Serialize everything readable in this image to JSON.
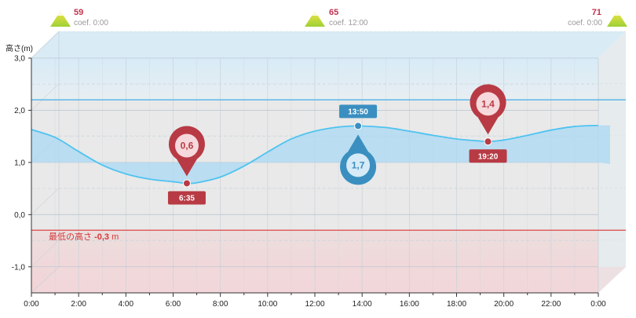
{
  "coefficients": [
    {
      "value": "59",
      "label": "coef. 0:00"
    },
    {
      "value": "65",
      "label": "coef. 12:00"
    },
    {
      "value": "71",
      "label": "coef. 0:00"
    }
  ],
  "min_height": {
    "label": "最低の高さ",
    "value": "-0,3",
    "unit": "m"
  },
  "chart_data": {
    "type": "area",
    "ylabel": "高さ(m)",
    "xlim": [
      0,
      24
    ],
    "ylim": [
      -1.5,
      3.0
    ],
    "x_ticks": [
      "0:00",
      "2:00",
      "4:00",
      "6:00",
      "8:00",
      "10:00",
      "12:00",
      "14:00",
      "16:00",
      "18:00",
      "20:00",
      "22:00",
      "0:00"
    ],
    "y_ticks": [
      "3,0",
      "2,0",
      "1,0",
      "0,0",
      "-1,0"
    ],
    "y_tick_values": [
      3,
      2,
      1,
      0,
      -1
    ],
    "reference_lines": [
      {
        "y": 2.2,
        "color": "#5bb8e8"
      },
      {
        "y": -0.3,
        "color": "#e06060"
      }
    ],
    "series": [
      {
        "values": [
          [
            0,
            1.63
          ],
          [
            1,
            1.48
          ],
          [
            2,
            1.21
          ],
          [
            3,
            0.95
          ],
          [
            4,
            0.78
          ],
          [
            5,
            0.68
          ],
          [
            6,
            0.63
          ],
          [
            6.58,
            0.6
          ],
          [
            7,
            0.61
          ],
          [
            8,
            0.72
          ],
          [
            9,
            0.93
          ],
          [
            10,
            1.2
          ],
          [
            11,
            1.45
          ],
          [
            12,
            1.6
          ],
          [
            13,
            1.68
          ],
          [
            13.83,
            1.7
          ],
          [
            15,
            1.67
          ],
          [
            16,
            1.6
          ],
          [
            17,
            1.52
          ],
          [
            18,
            1.45
          ],
          [
            19,
            1.41
          ],
          [
            19.33,
            1.4
          ],
          [
            20,
            1.43
          ],
          [
            21,
            1.52
          ],
          [
            22,
            1.62
          ],
          [
            23,
            1.69
          ],
          [
            24,
            1.71
          ]
        ]
      }
    ],
    "extremes": [
      {
        "kind": "low",
        "x": 6.58,
        "y": 0.6,
        "value_label": "0,6",
        "time_label": "6:35"
      },
      {
        "kind": "high",
        "x": 13.83,
        "y": 1.7,
        "value_label": "1,7",
        "time_label": "13:50"
      },
      {
        "kind": "low",
        "x": 19.33,
        "y": 1.4,
        "value_label": "1,4",
        "time_label": "19:20"
      }
    ],
    "grid": true,
    "colors": {
      "curve": "#4fc3f0",
      "high": "#3a8fc0",
      "low": "#b83a44",
      "min_line": "#e06060"
    }
  }
}
